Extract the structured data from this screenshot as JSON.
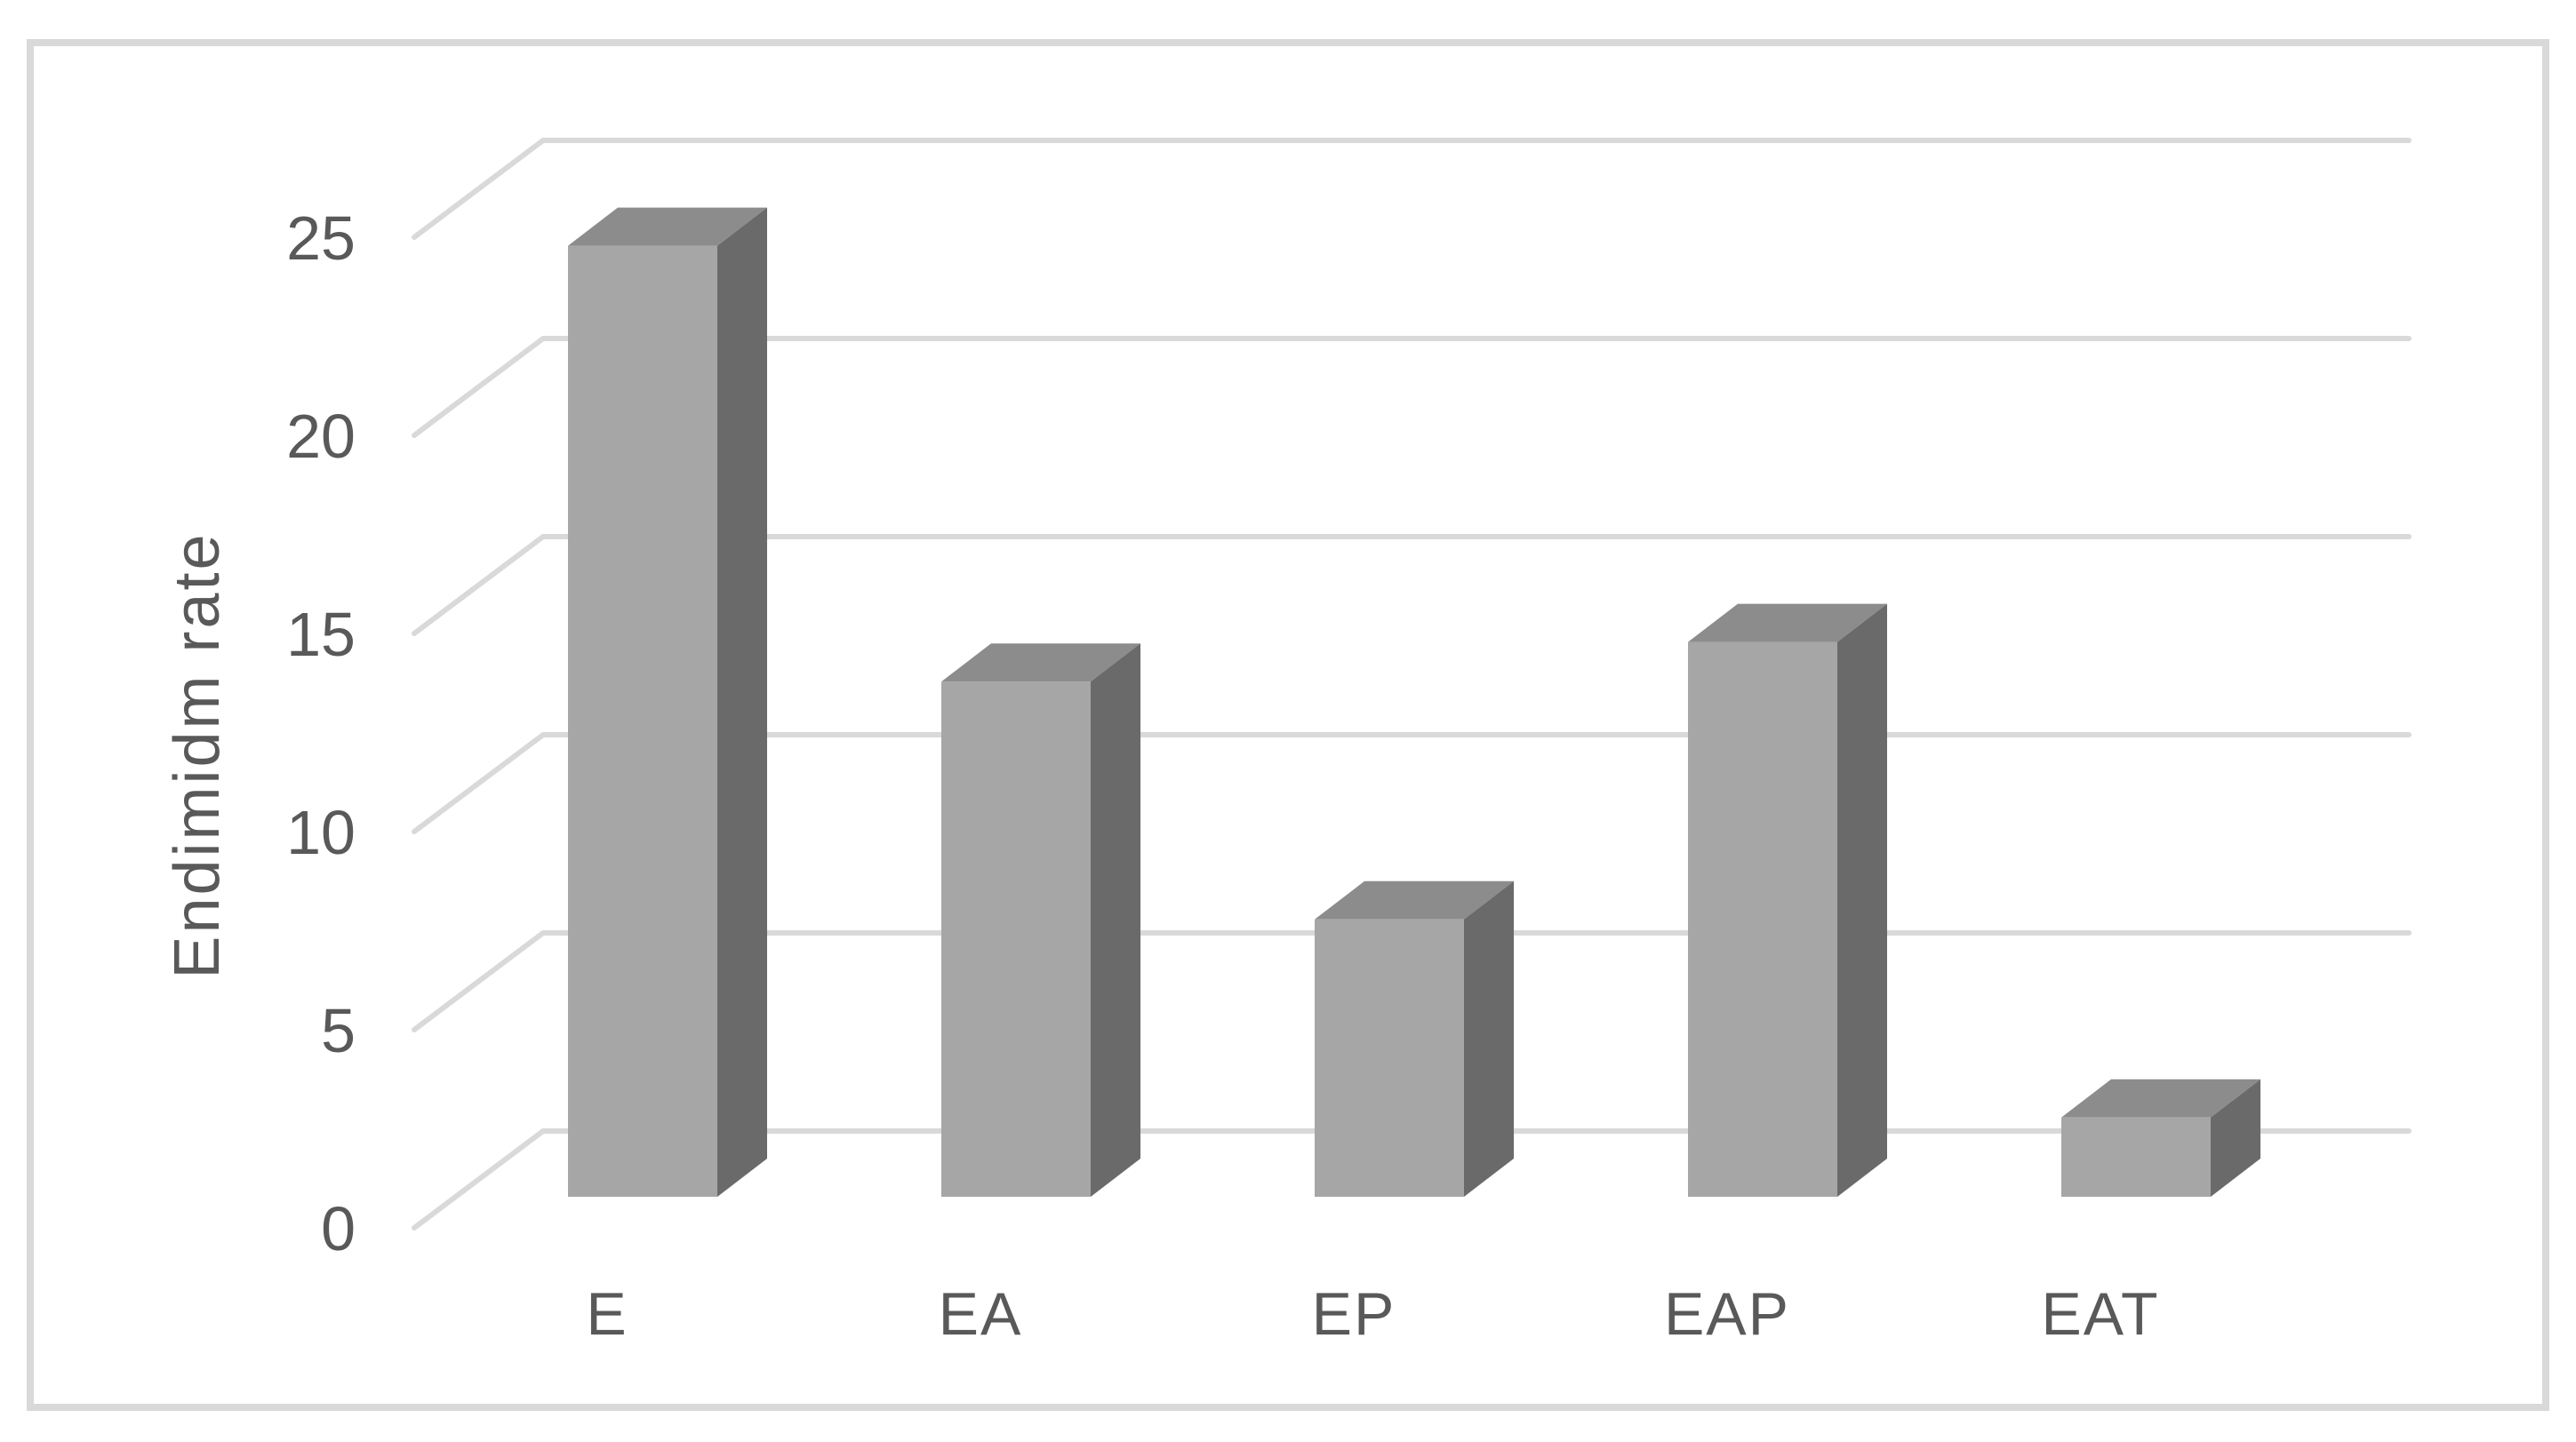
{
  "chart_data": {
    "type": "bar",
    "style": "3d-column",
    "title": "",
    "xlabel": "",
    "ylabel": "Endimidm rate",
    "categories": [
      "E",
      "EA",
      "EP",
      "EAP",
      "EAT"
    ],
    "values": [
      24,
      13,
      7,
      14,
      2
    ],
    "series": [
      {
        "name": "Endimidm rate",
        "values": [
          24,
          13,
          7,
          14,
          2
        ]
      }
    ],
    "ylim": [
      0,
      25
    ],
    "yticks": [
      0,
      5,
      10,
      15,
      20,
      25
    ],
    "grid": "horizontal-back-wall",
    "legend": "none",
    "colors": {
      "bar_front": "#A6A6A6",
      "bar_side": "#6A6A6A",
      "bar_top": "#8C8C8C",
      "gridline": "#D9D9D9",
      "frame": "#D9D9D9",
      "text": "#595959",
      "background": "#FFFFFF"
    }
  }
}
